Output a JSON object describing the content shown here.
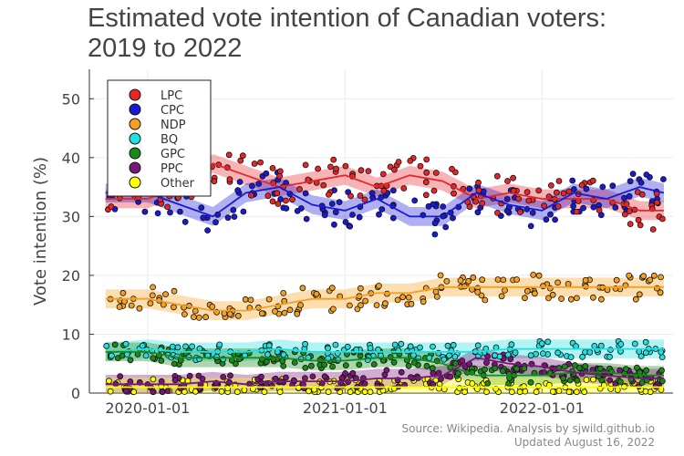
{
  "title_line1": "Estimated vote intention of Canadian voters:",
  "title_line2": "2019 to 2022",
  "source_line1": "Source: Wikipedia. Analysis by sjwild.github.io",
  "source_line2": "Updated August 16, 2022",
  "chart_data": {
    "type": "scatter",
    "title": "Estimated vote intention of Canadian voters: 2019 to 2022",
    "ylabel": "Vote intention (%)",
    "xlabel": "",
    "x_ticks": [
      "2020-01-01",
      "2021-01-01",
      "2022-01-01"
    ],
    "xlim": [
      "2019-09-15",
      "2022-09-01"
    ],
    "ylim": [
      0,
      55
    ],
    "y_ticks": [
      0,
      10,
      20,
      30,
      40,
      50
    ],
    "grid": true,
    "legend_position": "top-left",
    "series": [
      {
        "name": "LPC",
        "color": "#e8262a",
        "points": [
          [
            "2019-10-15",
            33
          ],
          [
            "2020-01-01",
            33
          ],
          [
            "2020-03-01",
            35
          ],
          [
            "2020-05-01",
            39
          ],
          [
            "2020-07-01",
            37
          ],
          [
            "2020-09-01",
            35
          ],
          [
            "2020-11-01",
            36
          ],
          [
            "2021-01-01",
            37
          ],
          [
            "2021-03-01",
            35
          ],
          [
            "2021-05-01",
            37
          ],
          [
            "2021-07-01",
            36
          ],
          [
            "2021-09-01",
            33
          ],
          [
            "2021-11-01",
            34
          ],
          [
            "2022-01-01",
            33
          ],
          [
            "2022-03-01",
            33
          ],
          [
            "2022-05-01",
            33
          ],
          [
            "2022-07-01",
            31
          ],
          [
            "2022-08-15",
            31
          ]
        ]
      },
      {
        "name": "CPC",
        "color": "#1a1ad6",
        "points": [
          [
            "2019-10-15",
            34
          ],
          [
            "2020-01-01",
            34
          ],
          [
            "2020-03-01",
            32
          ],
          [
            "2020-05-01",
            30
          ],
          [
            "2020-07-01",
            34
          ],
          [
            "2020-09-01",
            35
          ],
          [
            "2020-11-01",
            32
          ],
          [
            "2021-01-01",
            31
          ],
          [
            "2021-03-01",
            33
          ],
          [
            "2021-05-01",
            30
          ],
          [
            "2021-07-01",
            30
          ],
          [
            "2021-09-01",
            34
          ],
          [
            "2021-11-01",
            32
          ],
          [
            "2022-01-01",
            31
          ],
          [
            "2022-03-01",
            34
          ],
          [
            "2022-05-01",
            33
          ],
          [
            "2022-07-01",
            35
          ],
          [
            "2022-08-15",
            34
          ]
        ]
      },
      {
        "name": "NDP",
        "color": "#f5a020",
        "points": [
          [
            "2019-10-15",
            16
          ],
          [
            "2020-01-01",
            16
          ],
          [
            "2020-03-01",
            15
          ],
          [
            "2020-05-01",
            14
          ],
          [
            "2020-07-01",
            14
          ],
          [
            "2020-09-01",
            15
          ],
          [
            "2020-11-01",
            16
          ],
          [
            "2021-01-01",
            16
          ],
          [
            "2021-03-01",
            17
          ],
          [
            "2021-05-01",
            17
          ],
          [
            "2021-07-01",
            18
          ],
          [
            "2021-09-01",
            18
          ],
          [
            "2021-11-01",
            18
          ],
          [
            "2022-01-01",
            18
          ],
          [
            "2022-03-01",
            18
          ],
          [
            "2022-05-01",
            18
          ],
          [
            "2022-07-01",
            18
          ],
          [
            "2022-08-15",
            18
          ]
        ]
      },
      {
        "name": "BQ",
        "color": "#20e0e0",
        "points": [
          [
            "2019-10-15",
            7
          ],
          [
            "2020-01-01",
            7.5
          ],
          [
            "2020-03-01",
            7
          ],
          [
            "2020-05-01",
            7
          ],
          [
            "2020-07-01",
            7
          ],
          [
            "2020-09-01",
            7.5
          ],
          [
            "2020-11-01",
            7
          ],
          [
            "2021-01-01",
            7
          ],
          [
            "2021-03-01",
            7
          ],
          [
            "2021-05-01",
            7
          ],
          [
            "2021-07-01",
            7
          ],
          [
            "2021-09-01",
            7
          ],
          [
            "2021-11-01",
            7.5
          ],
          [
            "2022-01-01",
            7.5
          ],
          [
            "2022-03-01",
            7.5
          ],
          [
            "2022-05-01",
            7.5
          ],
          [
            "2022-07-01",
            7.5
          ],
          [
            "2022-08-15",
            7.5
          ]
        ]
      },
      {
        "name": "GPC",
        "color": "#178a17",
        "points": [
          [
            "2019-10-15",
            7
          ],
          [
            "2020-01-01",
            7
          ],
          [
            "2020-03-01",
            6
          ],
          [
            "2020-05-01",
            6
          ],
          [
            "2020-07-01",
            6
          ],
          [
            "2020-09-01",
            6
          ],
          [
            "2020-11-01",
            5.5
          ],
          [
            "2021-01-01",
            5.5
          ],
          [
            "2021-03-01",
            6
          ],
          [
            "2021-05-01",
            6
          ],
          [
            "2021-07-01",
            5
          ],
          [
            "2021-09-01",
            3
          ],
          [
            "2021-11-01",
            3
          ],
          [
            "2022-01-01",
            3
          ],
          [
            "2022-03-01",
            3.5
          ],
          [
            "2022-05-01",
            3.5
          ],
          [
            "2022-07-01",
            3
          ],
          [
            "2022-08-15",
            3
          ]
        ]
      },
      {
        "name": "PPC",
        "color": "#7a167a",
        "points": [
          [
            "2019-10-15",
            1.5
          ],
          [
            "2020-01-01",
            1.5
          ],
          [
            "2020-03-01",
            1.5
          ],
          [
            "2020-05-01",
            2
          ],
          [
            "2020-07-01",
            1.5
          ],
          [
            "2020-09-01",
            2
          ],
          [
            "2020-11-01",
            2
          ],
          [
            "2021-01-01",
            2
          ],
          [
            "2021-03-01",
            2.5
          ],
          [
            "2021-05-01",
            2.5
          ],
          [
            "2021-07-01",
            3
          ],
          [
            "2021-09-01",
            6
          ],
          [
            "2021-11-01",
            5
          ],
          [
            "2022-01-01",
            4.5
          ],
          [
            "2022-03-01",
            3.5
          ],
          [
            "2022-05-01",
            3
          ],
          [
            "2022-07-01",
            2.5
          ],
          [
            "2022-08-15",
            2.5
          ]
        ]
      },
      {
        "name": "Other",
        "color": "#ffff00",
        "points": [
          [
            "2019-10-15",
            1
          ],
          [
            "2020-01-01",
            1
          ],
          [
            "2020-03-01",
            1
          ],
          [
            "2020-05-01",
            1
          ],
          [
            "2020-07-01",
            1
          ],
          [
            "2020-09-01",
            1
          ],
          [
            "2020-11-01",
            1
          ],
          [
            "2021-01-01",
            1
          ],
          [
            "2021-03-01",
            1
          ],
          [
            "2021-05-01",
            1
          ],
          [
            "2021-07-01",
            1
          ],
          [
            "2021-09-01",
            1
          ],
          [
            "2021-11-01",
            1
          ],
          [
            "2022-01-01",
            1
          ],
          [
            "2022-03-01",
            1
          ],
          [
            "2022-05-01",
            1
          ],
          [
            "2022-07-01",
            1
          ],
          [
            "2022-08-15",
            1
          ]
        ]
      }
    ]
  }
}
